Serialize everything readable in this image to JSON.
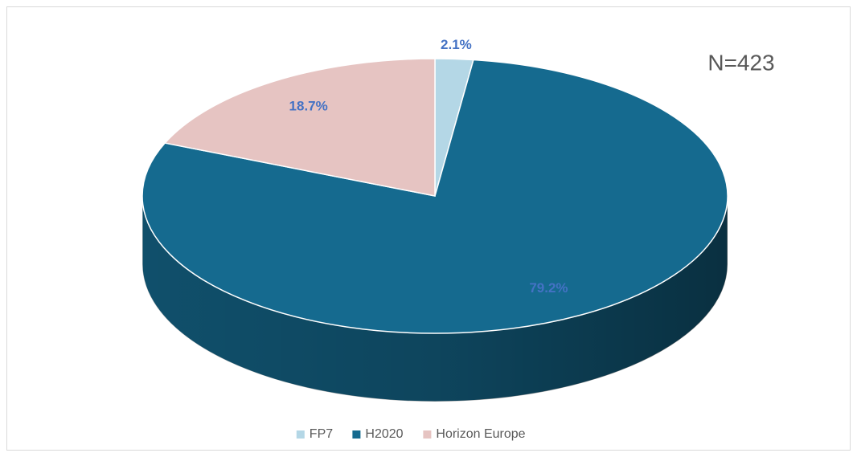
{
  "chart_data": {
    "type": "pie",
    "categories": [
      "FP7",
      "H2020",
      "Horizon Europe"
    ],
    "values": [
      2.1,
      79.2,
      18.7
    ],
    "value_labels": [
      "2.1%",
      "79.2%",
      "18.7%"
    ],
    "colors": [
      "#b4d7e6",
      "#156a8f",
      "#e6c4c2"
    ],
    "annotation": "N=423",
    "legend": "bottom"
  }
}
